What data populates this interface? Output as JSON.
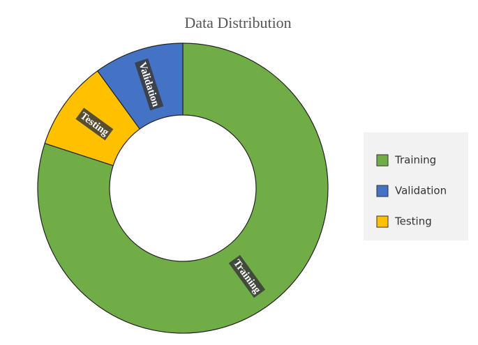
{
  "chart_data": {
    "type": "donut",
    "title": "Data Distribution",
    "categories": [
      "Training",
      "Validation",
      "Testing"
    ],
    "values": [
      80,
      10,
      10
    ],
    "colors": [
      "#70ad47",
      "#4472c4",
      "#ffc000"
    ],
    "legend": "right"
  }
}
